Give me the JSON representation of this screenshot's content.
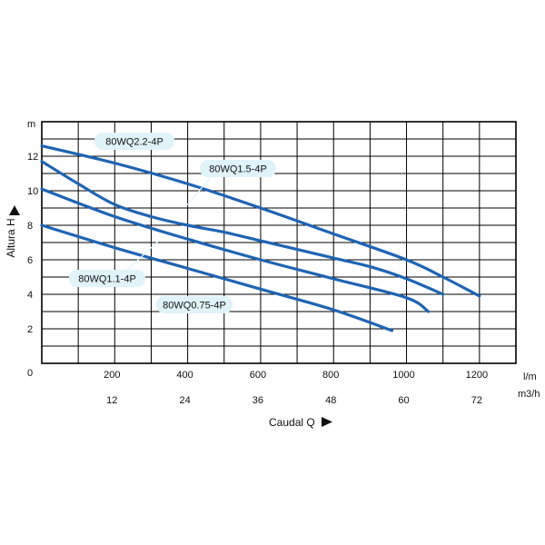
{
  "chart_data": {
    "type": "line",
    "title": "",
    "xlabel": "Caudal Q",
    "ylabel": "Altura H",
    "y_unit": "m",
    "x_unit_primary": "l/m",
    "x_unit_secondary": "m3/h",
    "xlim": [
      0,
      1300
    ],
    "ylim": [
      0,
      14
    ],
    "x_ticks_primary": [
      "200",
      "400",
      "600",
      "800",
      "1000",
      "1200"
    ],
    "x_ticks_primary_values": [
      200,
      400,
      600,
      800,
      1000,
      1200
    ],
    "x_ticks_secondary": [
      "12",
      "24",
      "36",
      "48",
      "60",
      "72"
    ],
    "x_ticks_secondary_values": [
      200,
      400,
      600,
      800,
      1000,
      1200
    ],
    "y_ticks": [
      "0",
      "2",
      "4",
      "6",
      "8",
      "10",
      "12"
    ],
    "y_ticks_values": [
      0,
      2,
      4,
      6,
      8,
      10,
      12
    ],
    "grid_x_step": 100,
    "grid_y_step": 1,
    "grid": true,
    "series_color": "#1f64b4",
    "label_box_color": "#dff3f9",
    "series": [
      {
        "name": "80WQ2.2-4P",
        "x": [
          0,
          200,
          400,
          600,
          800,
          1000,
          1100,
          1200
        ],
        "y": [
          12.6,
          11.6,
          10.4,
          9.0,
          7.5,
          6.0,
          5.0,
          3.9
        ]
      },
      {
        "name": "80WQ1.5-4P",
        "x": [
          0,
          100,
          200,
          300,
          400,
          500,
          600,
          700,
          800,
          900,
          1000,
          1100
        ],
        "y": [
          11.7,
          10.4,
          9.2,
          8.5,
          8.0,
          7.6,
          7.1,
          6.6,
          6.1,
          5.6,
          4.9,
          4.0
        ]
      },
      {
        "name": "80WQ1.1-4P",
        "x": [
          0,
          200,
          400,
          600,
          800,
          1000,
          1060
        ],
        "y": [
          10.1,
          8.5,
          7.2,
          6.0,
          4.9,
          3.8,
          3.0
        ]
      },
      {
        "name": "80WQ0.75-4P",
        "x": [
          0,
          200,
          400,
          600,
          800,
          960
        ],
        "y": [
          8.0,
          6.7,
          5.5,
          4.3,
          3.1,
          1.9
        ]
      }
    ]
  }
}
